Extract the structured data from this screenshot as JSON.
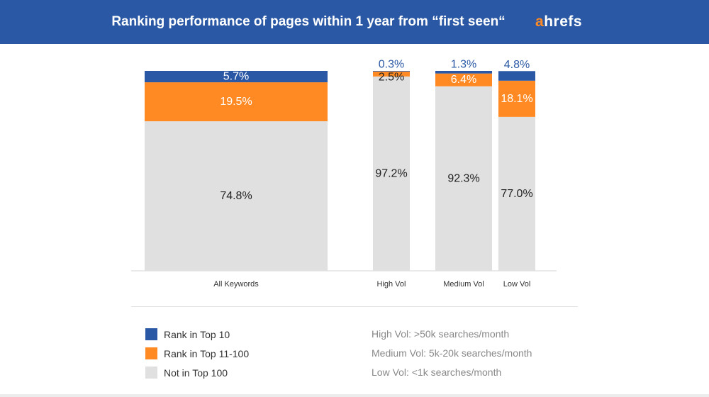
{
  "header": {
    "title": "Ranking performance of pages within 1 year from “first seen“",
    "logo_a": "a",
    "logo_rest": "hrefs"
  },
  "colors": {
    "header_bg": "#2a58a5",
    "top10": "#2a58a5",
    "top11_100": "#ff8a23",
    "not_top100": "#e0e0e0",
    "logo_accent": "#ff8a23"
  },
  "chart_data": {
    "type": "bar",
    "stacked": true,
    "normalized": true,
    "categories": [
      "All Keywords",
      "High Vol",
      "Medium Vol",
      "Low Vol"
    ],
    "series": [
      {
        "name": "Not in Top 100",
        "values": [
          74.8,
          97.2,
          92.3,
          77.0
        ],
        "labels": [
          "74.8%",
          "97.2%",
          "92.3%",
          "77.0%"
        ]
      },
      {
        "name": "Rank in Top 11-100",
        "values": [
          19.5,
          2.5,
          6.4,
          18.1
        ],
        "labels": [
          "19.5%",
          "2.5%",
          "6.4%",
          "18.1%"
        ]
      },
      {
        "name": "Rank in Top 10",
        "values": [
          5.7,
          0.3,
          1.3,
          4.8
        ],
        "labels": [
          "5.7%",
          "0.3%",
          "1.3%",
          "4.8%"
        ]
      }
    ],
    "ylim": [
      0,
      100
    ],
    "grid": false,
    "legend": "bottom-left"
  },
  "legend": [
    {
      "label": "Rank in Top 10",
      "color": "#2a58a5"
    },
    {
      "label": "Rank in Top 11-100",
      "color": "#ff8a23"
    },
    {
      "label": "Not in Top 100",
      "color": "#e0e0e0"
    }
  ],
  "notes": [
    "High Vol: >50k searches/month",
    "Medium Vol: 5k-20k searches/month",
    "Low Vol: <1k searches/month"
  ]
}
